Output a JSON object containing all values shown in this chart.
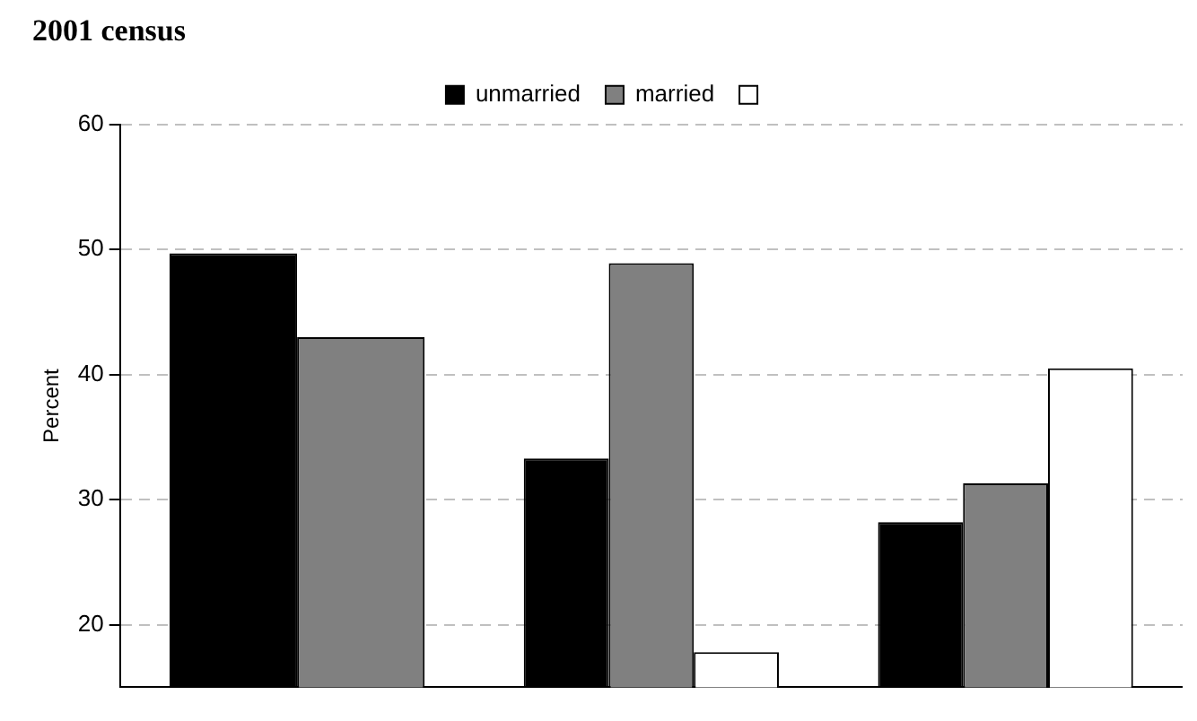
{
  "chart_data": {
    "type": "bar",
    "title": "2001 census",
    "ylabel": "Percent",
    "categories": [
      null,
      null,
      null
    ],
    "series": [
      {
        "name": "unmarried",
        "color": "#000000",
        "values": [
          49.7,
          33.3,
          28.2
        ]
      },
      {
        "name": "married",
        "color": "#808080",
        "values": [
          43.0,
          48.9,
          31.3
        ]
      },
      {
        "color": "#ffffff",
        "values": [
          null,
          17.8,
          40.5
        ]
      }
    ],
    "ylim": [
      15,
      60
    ],
    "yticks": [
      20,
      30,
      40,
      50,
      60
    ],
    "grid": "y",
    "legend": "top",
    "tick_labels": "y"
  }
}
